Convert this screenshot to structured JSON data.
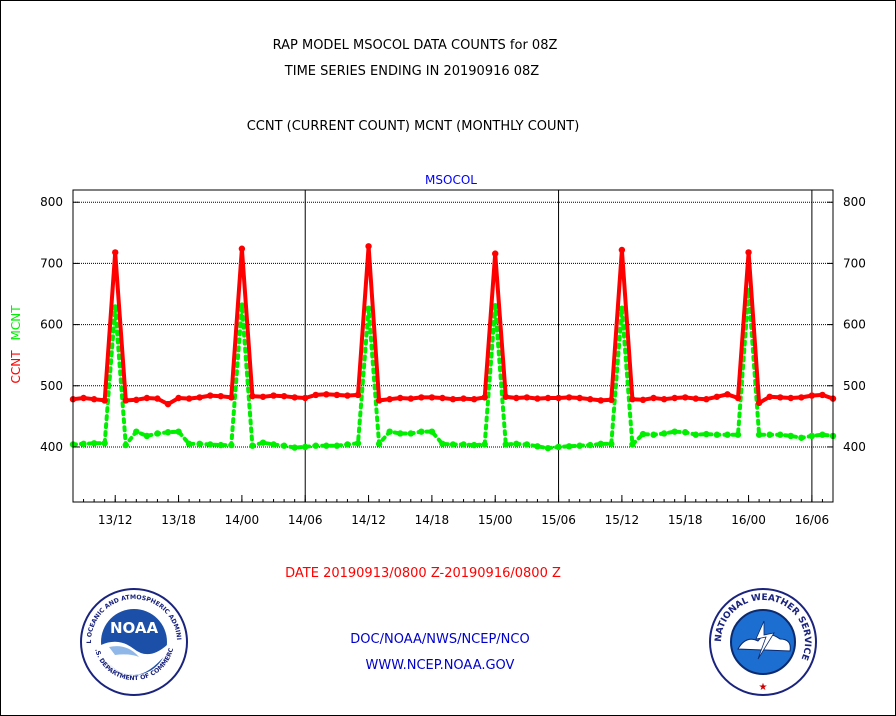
{
  "header": {
    "title_line1": "RAP MODEL MSOCOL DATA COUNTS for 08Z",
    "title_line2": "TIME SERIES ENDING IN 20190916 08Z",
    "subtitle": "CCNT (CURRENT COUNT) MCNT (MONTHLY COUNT)"
  },
  "chart_data": {
    "type": "line",
    "title": "MSOCOL",
    "xlabel": "DATE 20190913/0800 Z-20190916/0800 Z",
    "ylabel_series": [
      "CCNT",
      "MCNT"
    ],
    "ylim": [
      310,
      820
    ],
    "y_ticks": [
      400,
      500,
      600,
      700,
      800
    ],
    "x_unit": "hours since 13/08",
    "x_range": [
      0,
      72
    ],
    "x_ticks": [
      {
        "x": 4,
        "label": "13/12"
      },
      {
        "x": 10,
        "label": "13/18"
      },
      {
        "x": 16,
        "label": "14/00"
      },
      {
        "x": 22,
        "label": "14/06"
      },
      {
        "x": 28,
        "label": "14/12"
      },
      {
        "x": 34,
        "label": "14/18"
      },
      {
        "x": 40,
        "label": "15/00"
      },
      {
        "x": 46,
        "label": "15/06"
      },
      {
        "x": 52,
        "label": "15/12"
      },
      {
        "x": 58,
        "label": "15/18"
      },
      {
        "x": 64,
        "label": "16/00"
      },
      {
        "x": 70,
        "label": "16/06"
      }
    ],
    "day_boundaries": [
      22,
      46,
      70
    ],
    "grid": true,
    "series": [
      {
        "name": "CCNT",
        "color": "#ff0000",
        "values": [
          478,
          480,
          478,
          476,
          718,
          476,
          477,
          480,
          479,
          470,
          480,
          479,
          481,
          484,
          483,
          481,
          724,
          483,
          482,
          484,
          483,
          481,
          480,
          485,
          486,
          485,
          484,
          485,
          728,
          476,
          478,
          480,
          479,
          481,
          481,
          480,
          478,
          479,
          478,
          481,
          716,
          482,
          480,
          481,
          479,
          480,
          480,
          481,
          480,
          478,
          476,
          477,
          722,
          478,
          477,
          480,
          478,
          480,
          481,
          479,
          478,
          482,
          486,
          480,
          718,
          472,
          482,
          481,
          480,
          481,
          484,
          485,
          479
        ]
      },
      {
        "name": "MCNT",
        "color": "#00ee00",
        "values": [
          404,
          405,
          406,
          406,
          628,
          403,
          425,
          418,
          422,
          424,
          425,
          405,
          405,
          404,
          403,
          403,
          631,
          402,
          407,
          404,
          402,
          399,
          400,
          402,
          402,
          402,
          404,
          406,
          626,
          405,
          425,
          422,
          422,
          425,
          425,
          405,
          404,
          404,
          403,
          404,
          630,
          404,
          405,
          404,
          401,
          398,
          400,
          401,
          402,
          403,
          405,
          405,
          626,
          404,
          421,
          420,
          422,
          425,
          424,
          420,
          421,
          420,
          420,
          420,
          655,
          420,
          420,
          420,
          418,
          415,
          418,
          420,
          418
        ]
      }
    ]
  },
  "footer": {
    "line1": "DOC/NOAA/NWS/NCEP/NCO",
    "line2": "WWW.NCEP.NOAA.GOV"
  },
  "logos": {
    "noaa_text": "NOAA",
    "noaa_ring_top": "NATIONAL OCEANIC AND ATMOSPHERIC ADMINISTRATION",
    "noaa_ring_bottom": "U.S. DEPARTMENT OF COMMERCE",
    "nws_ring": "NATIONAL WEATHER SERVICE"
  },
  "colors": {
    "title": "#000000",
    "chart_title": "#0000ff",
    "ccnt": "#ff0000",
    "mcnt": "#00ee00",
    "date_label": "#ff0000",
    "footer": "#0000cc"
  }
}
